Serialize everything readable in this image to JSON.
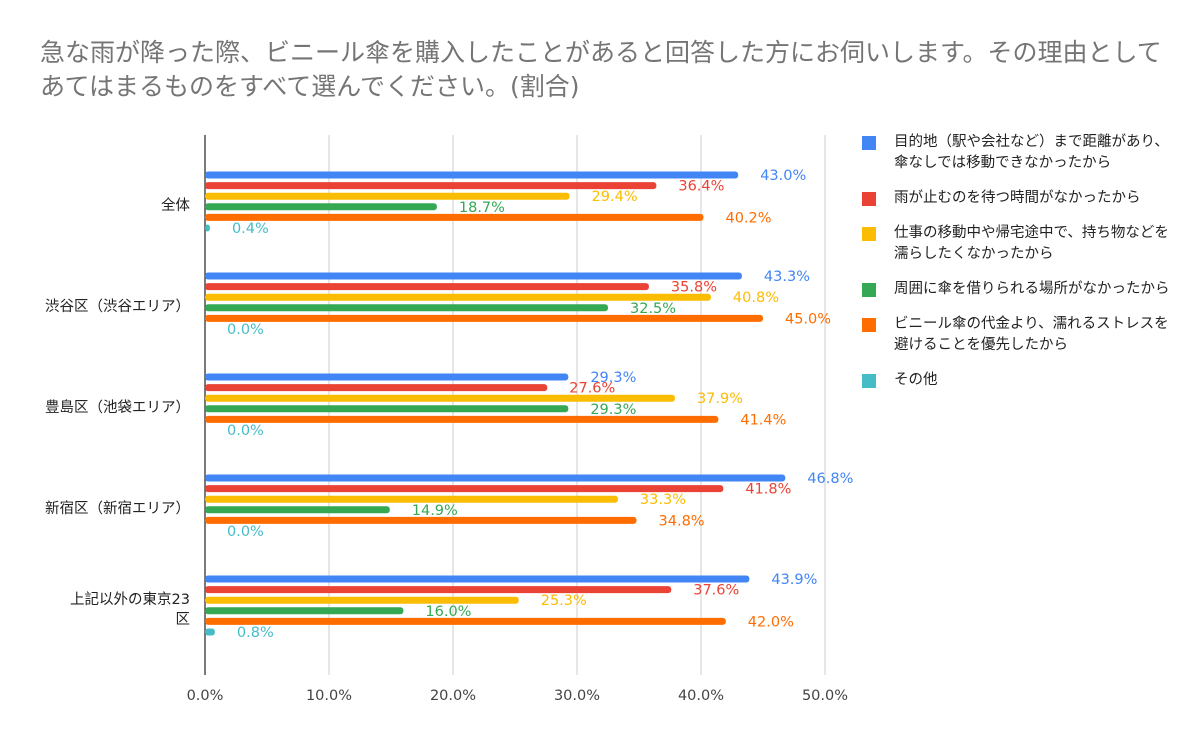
{
  "chart_data": {
    "type": "bar",
    "orientation": "horizontal",
    "title": "急な雨が降った際、ビニール傘を購入したことがあると回答した方にお伺いします。その理由としてあてはまるものをすべて選んでください。(割合)",
    "categories": [
      "全体",
      "渋谷区（渋谷エリア）",
      "豊島区（池袋エリア）",
      "新宿区（新宿エリア）",
      "上記以外の東京23区"
    ],
    "series": [
      {
        "name": "目的地（駅や会社など）まで距離があり、傘なしでは移動できなかったから",
        "color": "#4285F4",
        "values": [
          43.0,
          43.3,
          29.3,
          46.8,
          43.9
        ]
      },
      {
        "name": "雨が止むのを待つ時間がなかったから",
        "color": "#EA4335",
        "values": [
          36.4,
          35.8,
          27.6,
          41.8,
          37.6
        ]
      },
      {
        "name": "仕事の移動中や帰宅途中で、持ち物などを濡らしたくなかったから",
        "color": "#FBBC04",
        "values": [
          29.4,
          40.8,
          37.9,
          33.3,
          25.3
        ]
      },
      {
        "name": "周囲に傘を借りられる場所がなかったから",
        "color": "#34A853",
        "values": [
          18.7,
          32.5,
          29.3,
          14.9,
          16.0
        ]
      },
      {
        "name": "ビニール傘の代金より、濡れるストレスを避けることを優先したから",
        "color": "#FF6D01",
        "values": [
          40.2,
          45.0,
          41.4,
          34.8,
          42.0
        ]
      },
      {
        "name": "その他",
        "color": "#46BDC6",
        "values": [
          0.4,
          0.0,
          0.0,
          0.0,
          0.8
        ]
      }
    ],
    "xlim": [
      0,
      50
    ],
    "xticks": [
      "0.0%",
      "10.0%",
      "20.0%",
      "30.0%",
      "40.0%",
      "50.0%"
    ],
    "grid": true,
    "legend": "right",
    "data_labels": true
  }
}
